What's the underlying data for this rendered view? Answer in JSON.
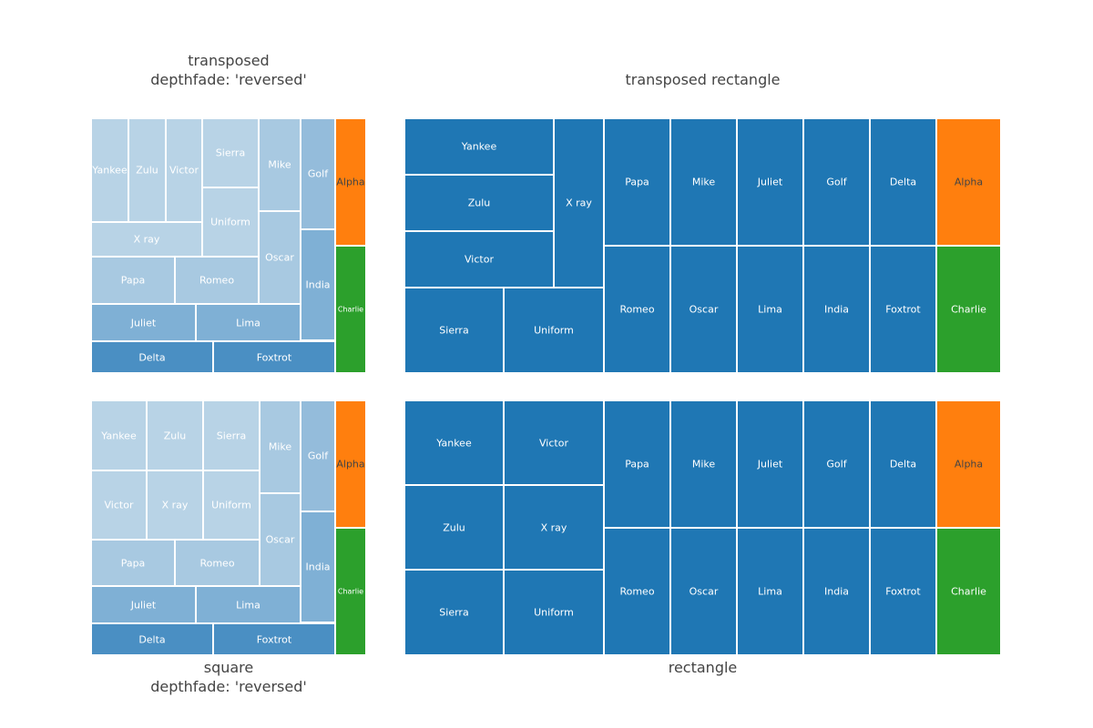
{
  "colors": {
    "blue": "#1f77b4",
    "orange": "#ff7f0e",
    "green": "#2ca02c",
    "fade_lightest": "#b8d3e6",
    "fade_light": "#a8c9e1",
    "fade_mid": "#94bcdb",
    "fade_dark": "#7fb0d5",
    "fade_darker": "#5b9bc9",
    "fade_darkest": "#4a8fc3"
  },
  "chart_data": [
    {
      "type": "treemap",
      "subtitle_line1": "transposed",
      "subtitle_line2": "depthfade: 'reversed'",
      "tiling": "squarify",
      "transposed": true,
      "depthfade": "reversed",
      "labels": [
        "Alpha",
        "Charlie",
        "Golf",
        "India",
        "Mike",
        "Oscar",
        "Sierra",
        "Uniform",
        "Yankee",
        "Zulu",
        "Victor",
        "X ray",
        "Papa",
        "Romeo",
        "Juliet",
        "Lima",
        "Delta",
        "Foxtrot"
      ]
    },
    {
      "type": "treemap",
      "subtitle_line1": "transposed rectangle",
      "tiling": "slice-dice",
      "transposed": true,
      "labels": [
        "Yankee",
        "Zulu",
        "Victor",
        "X ray",
        "Sierra",
        "Uniform",
        "Papa",
        "Mike",
        "Juliet",
        "Golf",
        "Delta",
        "Alpha",
        "Romeo",
        "Oscar",
        "Lima",
        "India",
        "Foxtrot",
        "Charlie"
      ]
    },
    {
      "type": "treemap",
      "subtitle_line1": "square",
      "subtitle_line2": "depthfade: 'reversed'",
      "tiling": "squarify",
      "depthfade": "reversed",
      "labels": [
        "Yankee",
        "Zulu",
        "Sierra",
        "Victor",
        "X ray",
        "Uniform",
        "Mike",
        "Golf",
        "Alpha",
        "Oscar",
        "India",
        "Charlie",
        "Papa",
        "Romeo",
        "Juliet",
        "Lima",
        "Delta",
        "Foxtrot"
      ]
    },
    {
      "type": "treemap",
      "subtitle_line1": "rectangle",
      "tiling": "slice-dice",
      "labels": [
        "Yankee",
        "Victor",
        "Zulu",
        "X ray",
        "Sierra",
        "Uniform",
        "Papa",
        "Mike",
        "Juliet",
        "Golf",
        "Delta",
        "Alpha",
        "Romeo",
        "Oscar",
        "Lima",
        "India",
        "Foxtrot",
        "Charlie"
      ]
    }
  ]
}
